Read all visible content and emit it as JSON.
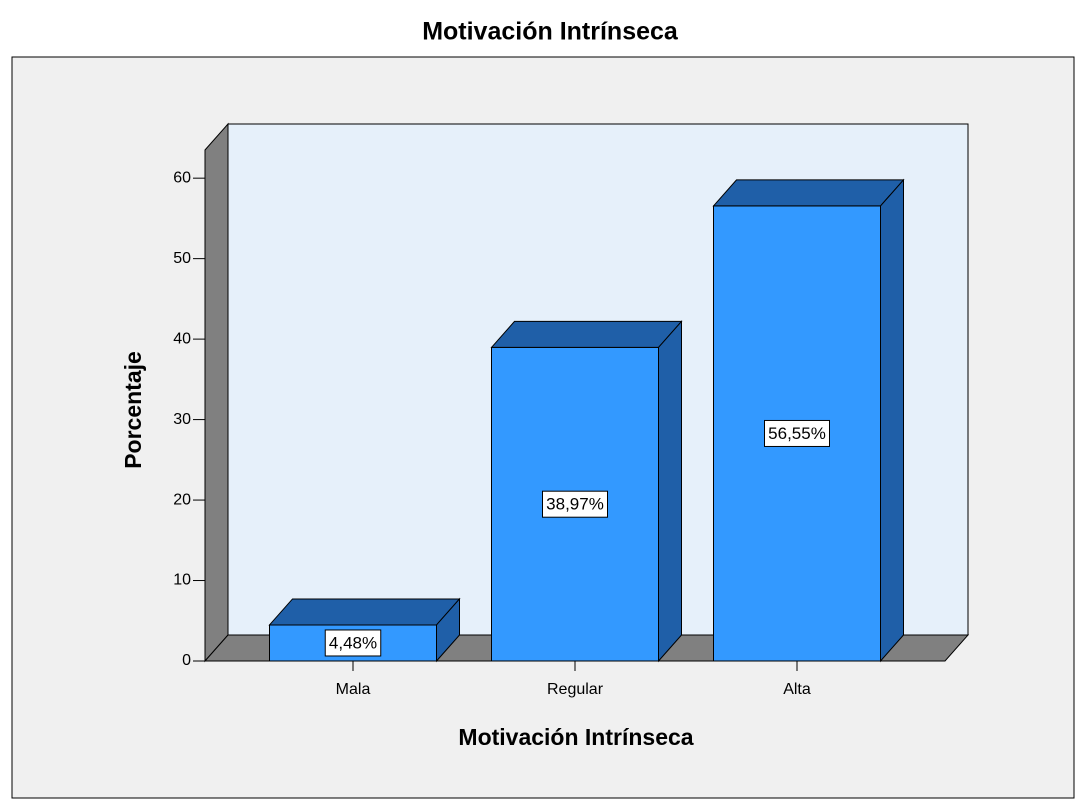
{
  "chart_data": {
    "type": "bar3d",
    "title": "Motivación Intrínseca",
    "x_label": "Motivación Intrínseca",
    "y_label": "Porcentaje",
    "categories": [
      "Mala",
      "Regular",
      "Alta"
    ],
    "values": [
      4.48,
      38.97,
      56.55
    ],
    "value_labels": [
      "4,48%",
      "38,97%",
      "56,55%"
    ],
    "color": "#3399ff",
    "ylim": [
      0,
      63.5
    ],
    "yticks": [
      0,
      10,
      20,
      30,
      40,
      50,
      60
    ]
  }
}
